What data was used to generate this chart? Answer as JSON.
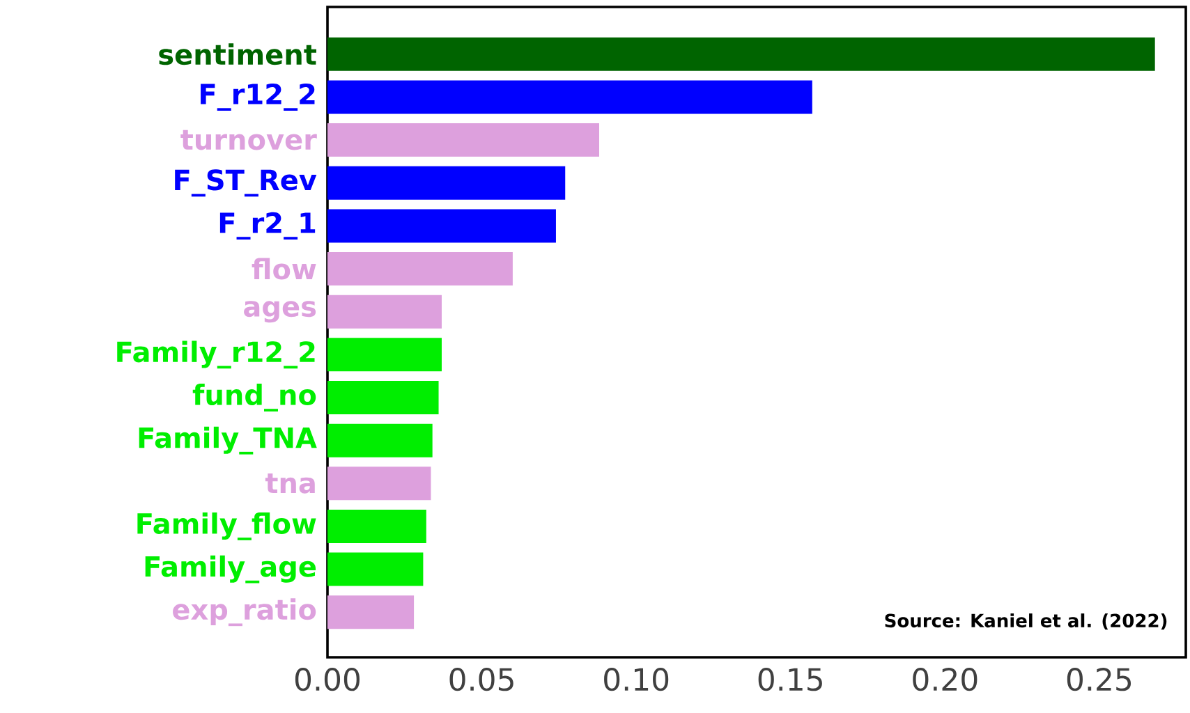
{
  "chart_data": {
    "type": "bar",
    "orientation": "horizontal",
    "categories": [
      "sentiment",
      "F_r12_2",
      "turnover",
      "F_ST_Rev",
      "F_r2_1",
      "flow",
      "ages",
      "Family_r12_2",
      "fund_no",
      "Family_TNA",
      "tna",
      "Family_flow",
      "Family_age",
      "exp_ratio"
    ],
    "values": [
      0.268,
      0.157,
      0.088,
      0.077,
      0.074,
      0.06,
      0.037,
      0.037,
      0.036,
      0.034,
      0.0335,
      0.032,
      0.031,
      0.028
    ],
    "colors": [
      "#006400",
      "#0000ff",
      "#dda0dd",
      "#0000ff",
      "#0000ff",
      "#dda0dd",
      "#dda0dd",
      "#00ee00",
      "#00ee00",
      "#00ee00",
      "#dda0dd",
      "#00ee00",
      "#00ee00",
      "#dda0dd"
    ],
    "xlim": [
      0,
      0.278
    ],
    "xticks": [
      {
        "value": 0,
        "label": "0.00"
      },
      {
        "value": 0.05,
        "label": "0.05"
      },
      {
        "value": 0.1,
        "label": "0.10"
      },
      {
        "value": 0.15,
        "label": "0.15"
      },
      {
        "value": 0.2,
        "label": "0.20"
      },
      {
        "value": 0.25,
        "label": "0.25"
      }
    ],
    "annotations": [
      "Source: Kaniel et al. (2022)"
    ]
  }
}
